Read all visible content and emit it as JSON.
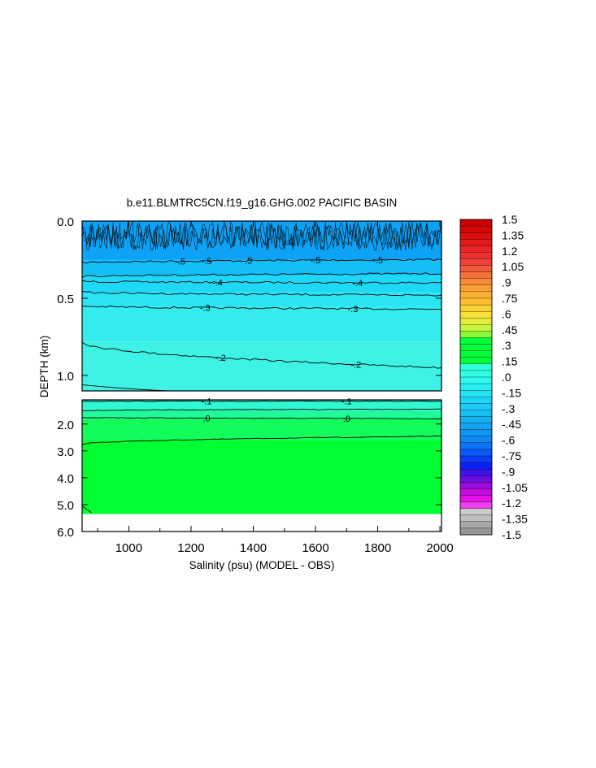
{
  "chart_data": {
    "type": "heatmap",
    "title": "b.e11.BLMTRC5CN.f19_g16.GHG.002 PACIFIC BASIN",
    "xlabel": "Salinity (psu) (MODEL - OBS)",
    "ylabel": "DEPTH (km)",
    "xlim": [
      850,
      2005
    ],
    "x_ticks": [
      "1000",
      "1200",
      "1400",
      "1600",
      "1800",
      "2000"
    ],
    "x_tick_values": [
      1000,
      1200,
      1400,
      1600,
      1800,
      2000
    ],
    "upper_panel": {
      "ylim": [
        0.0,
        1.1
      ],
      "y_ticks": [
        "0.0",
        "0.5",
        "1.0"
      ],
      "y_tick_values": [
        0.0,
        0.5,
        1.0
      ]
    },
    "lower_panel": {
      "ylim": [
        1.1,
        6.0
      ],
      "y_ticks": [
        "2.0",
        "3.0",
        "4.0",
        "5.0",
        "6.0"
      ],
      "y_tick_values": [
        2.0,
        3.0,
        4.0,
        5.0,
        6.0
      ]
    },
    "contour_levels": [
      {
        "level": -0.5,
        "label": "-.5",
        "depth_start": 0.27,
        "depth_end": 0.25,
        "label_x": [
          1165,
          1250,
          1380,
          1600,
          1800
        ]
      },
      {
        "level": -0.4,
        "label": "-.4",
        "depth_start": 0.39,
        "depth_end": 0.4,
        "label_x": [
          1285,
          1735
        ]
      },
      {
        "level": -0.3,
        "label": "-.3",
        "depth_start": 0.55,
        "depth_end": 0.57,
        "label_x": [
          1245,
          1720
        ]
      },
      {
        "level": -0.2,
        "label": "-.2",
        "depth_start": 0.78,
        "depth_end": 0.95,
        "label_x": [
          1295,
          1730
        ]
      },
      {
        "level": -0.1,
        "label": "-.1",
        "depth_start": 1.15,
        "depth_end": 1.15,
        "label_x": [
          1250,
          1700
        ]
      },
      {
        "level": 0.0,
        "label": ".0",
        "depth_start": 1.75,
        "depth_end": 1.8,
        "label_x": [
          1250,
          1700
        ]
      }
    ],
    "extra_contours": [
      {
        "depth_start": 0.36,
        "depth_end": 0.34
      },
      {
        "depth_start": 0.46,
        "depth_end": 0.48
      },
      {
        "depth_start": 1.5,
        "depth_end": 1.45
      },
      {
        "depth_start": 2.75,
        "depth_end": 2.45
      }
    ],
    "field_colors": [
      {
        "depth": 0.0,
        "color": "#0ea2f6"
      },
      {
        "depth": 0.25,
        "color": "#14bff8"
      },
      {
        "depth": 0.35,
        "color": "#1ed8f8"
      },
      {
        "depth": 0.46,
        "color": "#2ae4f4"
      },
      {
        "depth": 0.55,
        "color": "#34ecee"
      },
      {
        "depth": 0.78,
        "color": "#3ef2e6"
      },
      {
        "depth": 1.15,
        "color": "#30f8d0"
      },
      {
        "depth": 1.5,
        "color": "#20fb9a"
      },
      {
        "depth": 1.8,
        "color": "#12fc5c"
      },
      {
        "depth": 2.6,
        "color": "#00ff30"
      }
    ],
    "data_max_depth": 5.35,
    "colorbar": {
      "labels": [
        "1.5",
        "1.35",
        "1.2",
        "1.05",
        ".9",
        ".75",
        ".6",
        ".45",
        ".3",
        ".15",
        ".0",
        "-.15",
        "-.3",
        "-.45",
        "-.6",
        "-.75",
        "-.9",
        "-1.05",
        "-1.2",
        "-1.35",
        "-1.5"
      ],
      "colors": [
        "#cc0000",
        "#d40606",
        "#dc0e0e",
        "#e21a1a",
        "#e82424",
        "#ec3030",
        "#f0403a",
        "#f25a3a",
        "#f5723a",
        "#f88a38",
        "#fa9e36",
        "#fbb034",
        "#fcc034",
        "#fcd034",
        "#f8e038",
        "#e8ee3c",
        "#c8f43c",
        "#8cf838",
        "#00ff3a",
        "#00ff3a",
        "#00ff3a",
        "#00ff3a",
        "#30ffd8",
        "#30ffe2",
        "#2cfaec",
        "#28f0f0",
        "#24e4f4",
        "#20d6f6",
        "#1ccaf8",
        "#18beef",
        "#14b0f0",
        "#12a4f2",
        "#1096f4",
        "#0e88f6",
        "#0c72f8",
        "#0a5af8",
        "#0a3cf8",
        "#0a20f0",
        "#3a14e8",
        "#6a0ee0",
        "#9a0cdc",
        "#c40ce0",
        "#e80ee6",
        "#ee40ee",
        "#cccccc",
        "#bdbdbd",
        "#a8a8a8",
        "#969696"
      ]
    }
  }
}
